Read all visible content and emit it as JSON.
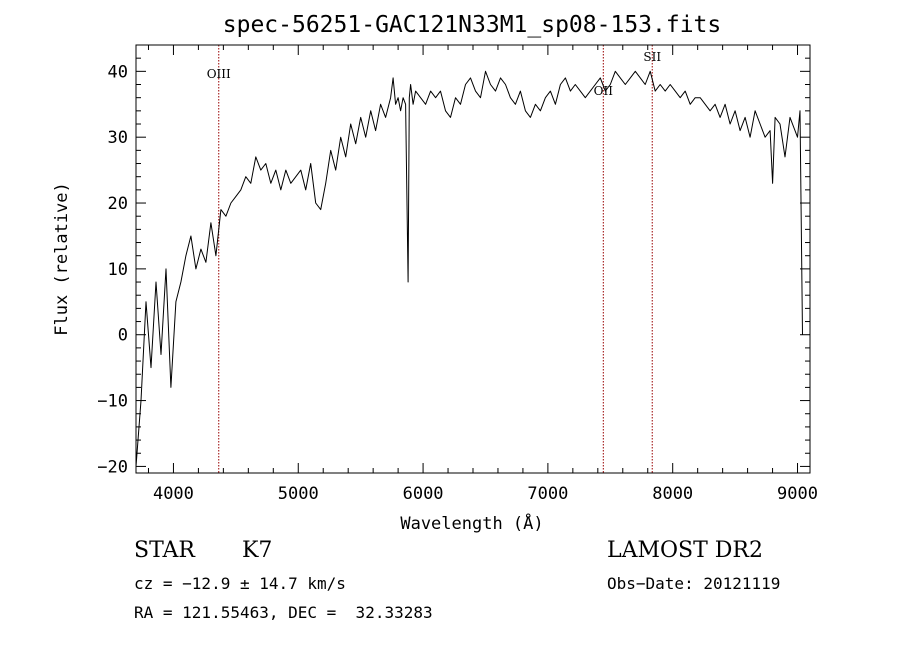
{
  "chart_data": {
    "type": "line",
    "title": "spec-56251-GAC121N33M1_sp08-153.fits",
    "xlabel": "Wavelength (Å)",
    "ylabel": "Flux (relative)",
    "xlim": [
      3700,
      9100
    ],
    "ylim": [
      -21,
      44
    ],
    "xticks": [
      4000,
      5000,
      6000,
      7000,
      8000,
      9000
    ],
    "xtick_labels": [
      "4000",
      "5000",
      "6000",
      "7000",
      "8000",
      "9000"
    ],
    "yticks": [
      -20,
      -10,
      0,
      10,
      20,
      30,
      40
    ],
    "ytick_labels": [
      "−20",
      "−10",
      "0",
      "10",
      "20",
      "30",
      "40"
    ],
    "grid": false,
    "series": [
      {
        "x": [
          3700,
          3740,
          3780,
          3820,
          3860,
          3900,
          3940,
          3980,
          4020,
          4060,
          4100,
          4140,
          4180,
          4220,
          4260,
          4300,
          4340,
          4380,
          4420,
          4460,
          4500,
          4540,
          4580,
          4620,
          4660,
          4700,
          4740,
          4780,
          4820,
          4860,
          4900,
          4940,
          4980,
          5020,
          5060,
          5100,
          5140,
          5180,
          5220,
          5260,
          5300,
          5340,
          5380,
          5420,
          5460,
          5500,
          5540,
          5580,
          5620,
          5660,
          5700,
          5740,
          5760,
          5780,
          5800,
          5820,
          5840,
          5860,
          5880,
          5890,
          5900,
          5920,
          5940,
          5980,
          6020,
          6060,
          6100,
          6140,
          6180,
          6220,
          6260,
          6300,
          6340,
          6380,
          6420,
          6460,
          6500,
          6540,
          6580,
          6620,
          6660,
          6700,
          6740,
          6780,
          6820,
          6860,
          6900,
          6940,
          6980,
          7020,
          7060,
          7100,
          7140,
          7180,
          7220,
          7260,
          7300,
          7340,
          7380,
          7420,
          7460,
          7500,
          7540,
          7580,
          7620,
          7660,
          7700,
          7740,
          7780,
          7820,
          7860,
          7900,
          7940,
          7980,
          8020,
          8060,
          8100,
          8140,
          8180,
          8220,
          8260,
          8300,
          8340,
          8380,
          8420,
          8460,
          8500,
          8540,
          8580,
          8620,
          8660,
          8700,
          8740,
          8780,
          8800,
          8820,
          8860,
          8900,
          8940,
          8980,
          9000,
          9020,
          9040
        ],
        "y": [
          -20,
          -10,
          5,
          -5,
          8,
          -3,
          10,
          -8,
          5,
          8,
          12,
          15,
          10,
          13,
          11,
          17,
          12,
          19,
          18,
          20,
          21,
          22,
          24,
          23,
          27,
          25,
          26,
          23,
          25,
          22,
          25,
          23,
          24,
          25,
          22,
          26,
          20,
          19,
          23,
          28,
          25,
          30,
          27,
          32,
          29,
          33,
          30,
          34,
          31,
          35,
          33,
          36,
          39,
          35,
          36,
          34,
          36,
          35,
          8,
          36,
          38,
          35,
          37,
          36,
          35,
          37,
          36,
          37,
          34,
          33,
          36,
          35,
          38,
          39,
          37,
          36,
          40,
          38,
          37,
          39,
          38,
          36,
          35,
          37,
          34,
          33,
          35,
          34,
          36,
          37,
          35,
          38,
          39,
          37,
          38,
          37,
          36,
          37,
          38,
          39,
          37,
          38,
          40,
          39,
          38,
          39,
          40,
          39,
          38,
          40,
          37,
          38,
          37,
          38,
          37,
          36,
          37,
          35,
          36,
          36,
          35,
          34,
          35,
          33,
          35,
          32,
          34,
          31,
          33,
          30,
          34,
          32,
          30,
          31,
          23,
          33,
          32,
          27,
          33,
          31,
          30,
          34,
          0
        ],
        "color": "#000000"
      }
    ],
    "annotations": [
      {
        "label": "OIII",
        "x": 4363,
        "color": "#990000"
      },
      {
        "label": "OII",
        "x": 7444,
        "color": "#990000"
      },
      {
        "label": "SII",
        "x": 7836,
        "color": "#990000"
      }
    ]
  },
  "info": {
    "object_class": "STAR",
    "subclass": "K7",
    "survey": "LAMOST DR2",
    "redshift_text": "cz = −12.9 ± 14.7 km/s",
    "obs_date_text": "Obs−Date: 20121119",
    "coords_text": "RA = 121.55463, DEC =  32.33283"
  }
}
